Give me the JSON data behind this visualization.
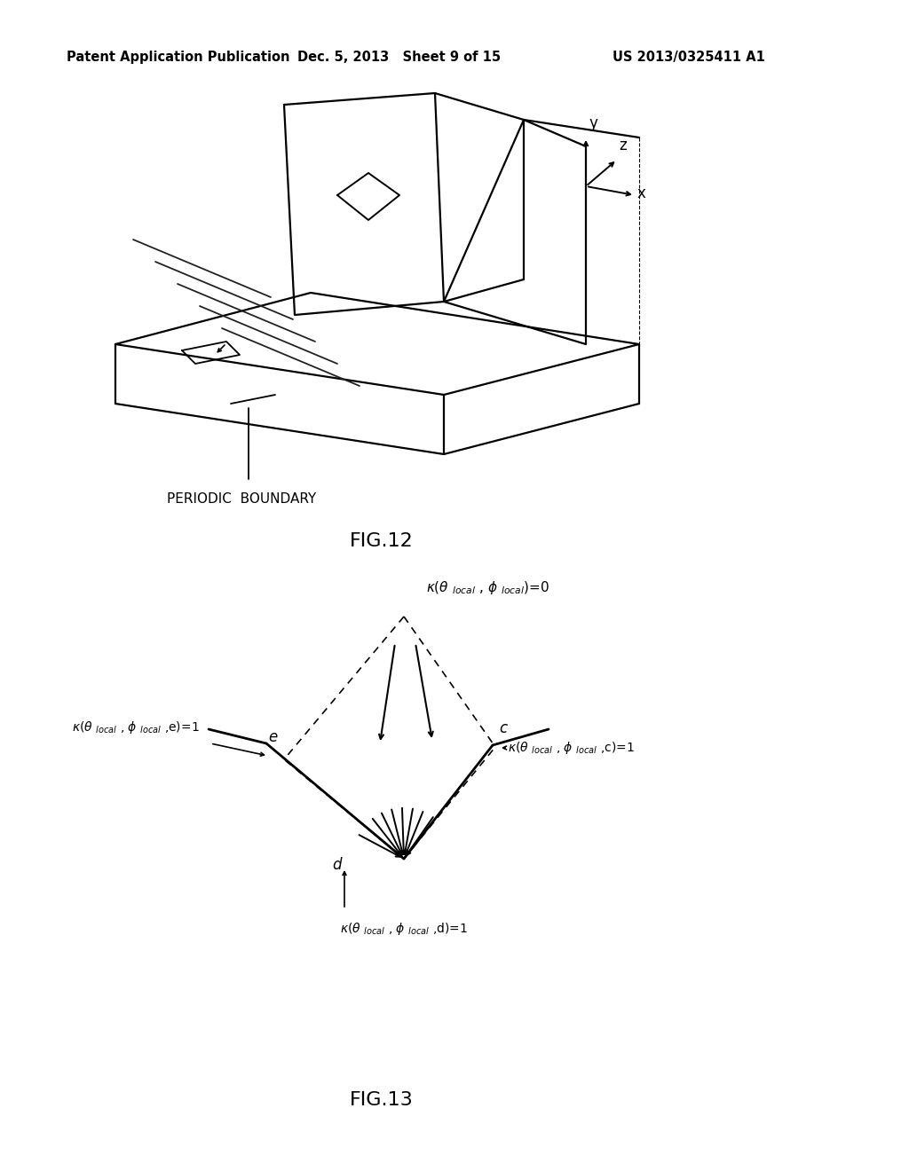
{
  "bg_color": "#ffffff",
  "header_left": "Patent Application Publication",
  "header_center": "Dec. 5, 2013   Sheet 9 of 15",
  "header_right": "US 2013/0325411 A1",
  "fig12_label": "FIG.12",
  "fig13_label": "FIG.13",
  "periodic_boundary_label": "PERIODIC  BOUNDARY",
  "line_color": "#000000"
}
